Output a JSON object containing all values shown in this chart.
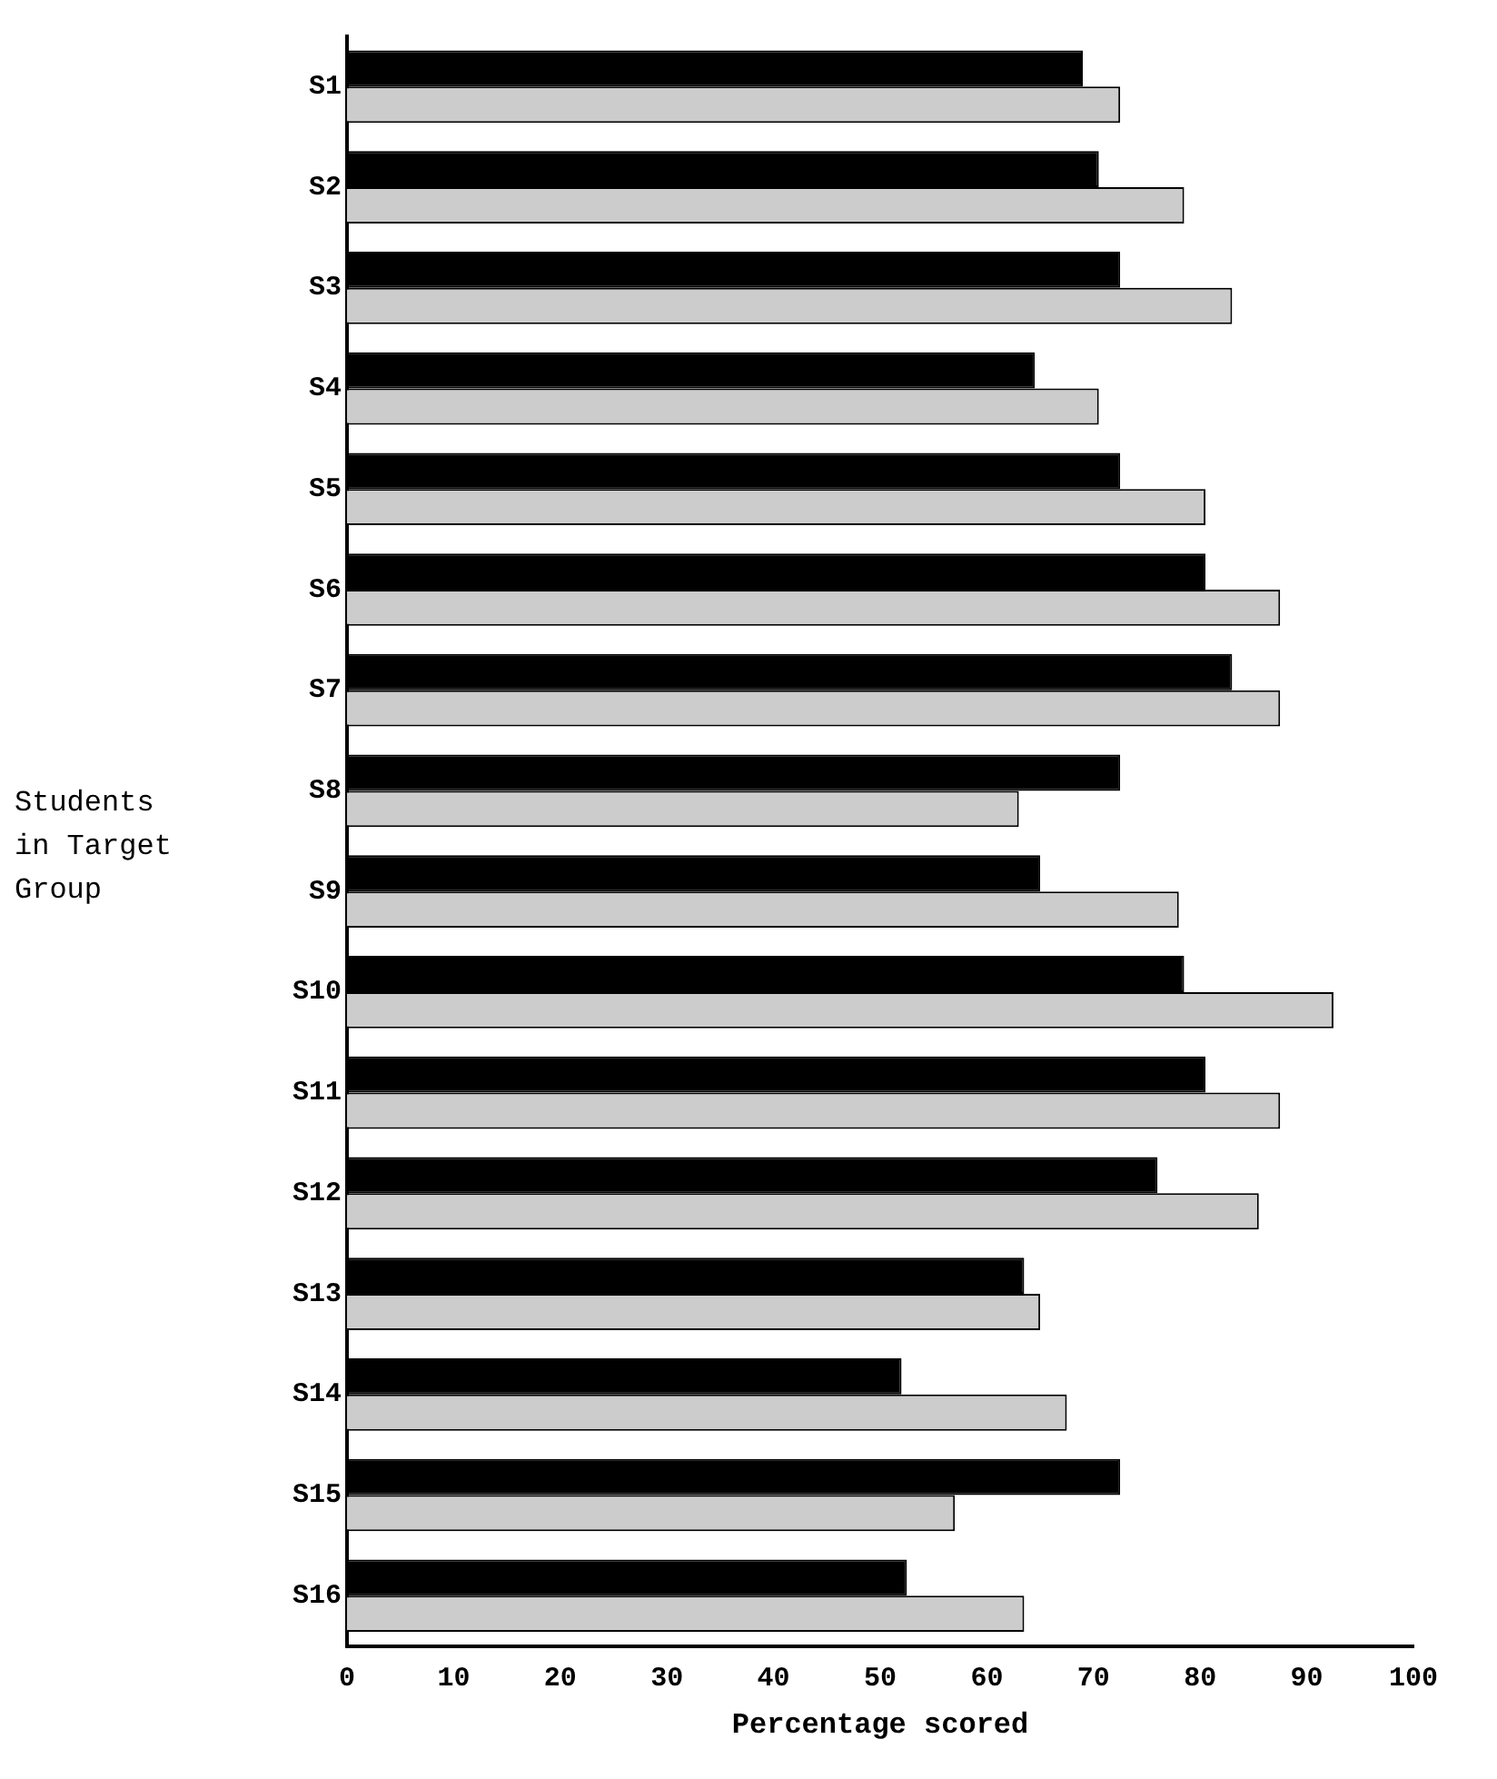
{
  "chart_data": {
    "type": "bar",
    "orientation": "horizontal",
    "xlabel": "Percentage scored",
    "ylabel": "Students\nin Target\nGroup",
    "categories": [
      "S1",
      "S2",
      "S3",
      "S4",
      "S5",
      "S6",
      "S7",
      "S8",
      "S9",
      "S10",
      "S11",
      "S12",
      "S13",
      "S14",
      "S15",
      "S16"
    ],
    "series": [
      {
        "color": "#000000",
        "values": [
          69,
          70.5,
          72.5,
          64.5,
          72.5,
          80.5,
          83,
          72.5,
          65,
          78.5,
          80.5,
          76,
          63.5,
          52,
          72.5,
          52.5
        ]
      },
      {
        "color": "#cccccc",
        "values": [
          72.5,
          78.5,
          83,
          70.5,
          80.5,
          87.5,
          87.5,
          63,
          78,
          92.5,
          87.5,
          85.5,
          65,
          67.5,
          57,
          63.5
        ]
      }
    ],
    "xlim": [
      0,
      100
    ],
    "xticks": [
      0,
      10,
      20,
      30,
      40,
      50,
      60,
      70,
      80,
      90,
      100
    ],
    "grid": false,
    "legend": false
  }
}
